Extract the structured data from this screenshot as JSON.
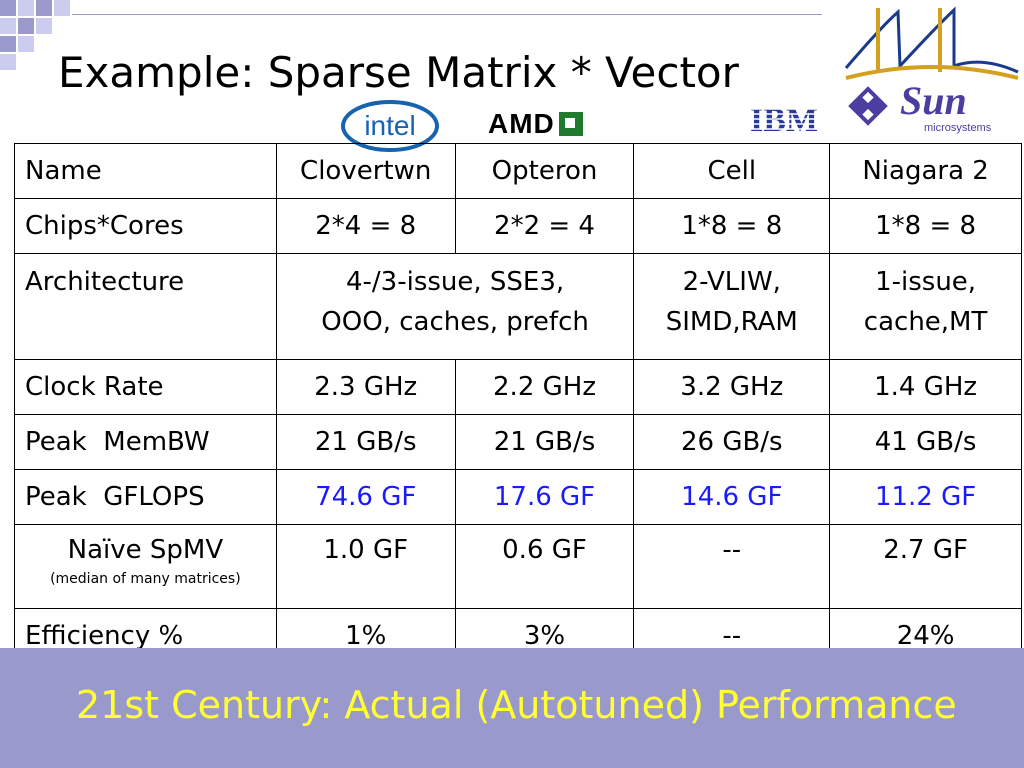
{
  "title": "Example: Sparse Matrix * Vector",
  "logos": {
    "intel": "intel",
    "amd": "AMD",
    "ibm": "IBM",
    "sun": "Sun",
    "sun_sub": "microsystems"
  },
  "table": {
    "header": [
      "Name",
      "Clovertwn",
      "Opteron",
      "Cell",
      "Niagara 2"
    ],
    "chips_cores": [
      "Chips*Cores",
      "2*4 = 8",
      "2*2 = 4",
      "1*8 = 8",
      "1*8 = 8"
    ],
    "architecture": {
      "label": "Architecture",
      "x86_line1": "4-/3-issue, SSE3,",
      "x86_line2": "OOO, caches, prefch",
      "cell_line1": "2-VLIW,",
      "cell_line2": "SIMD,RAM",
      "niagara_line1": "1-issue,",
      "niagara_line2": "cache,MT"
    },
    "clock_rate": [
      "Clock Rate",
      "2.3 GHz",
      "2.2 GHz",
      "3.2 GHz",
      "1.4 GHz"
    ],
    "peak_membw": [
      "Peak  MemBW",
      "21 GB/s",
      "21 GB/s",
      "26 GB/s",
      "41 GB/s"
    ],
    "peak_gflops": [
      "Peak  GFLOPS",
      "74.6 GF",
      "17.6 GF",
      "14.6 GF",
      "11.2 GF"
    ],
    "naive_spmv": {
      "label": "Naïve SpMV",
      "note": "(median of many matrices)",
      "values": [
        "1.0 GF",
        "0.6 GF",
        "--",
        "2.7 GF"
      ]
    },
    "efficiency": [
      "Efficiency %",
      "1%",
      "3%",
      "--",
      "24%"
    ]
  },
  "footer": "21st Century: Actual (Autotuned) Performance",
  "colors": {
    "footer_bg": "#9999cc",
    "footer_text": "#ffff33",
    "gflops_text": "#1a1aff",
    "corner_square": "#9999cc"
  }
}
